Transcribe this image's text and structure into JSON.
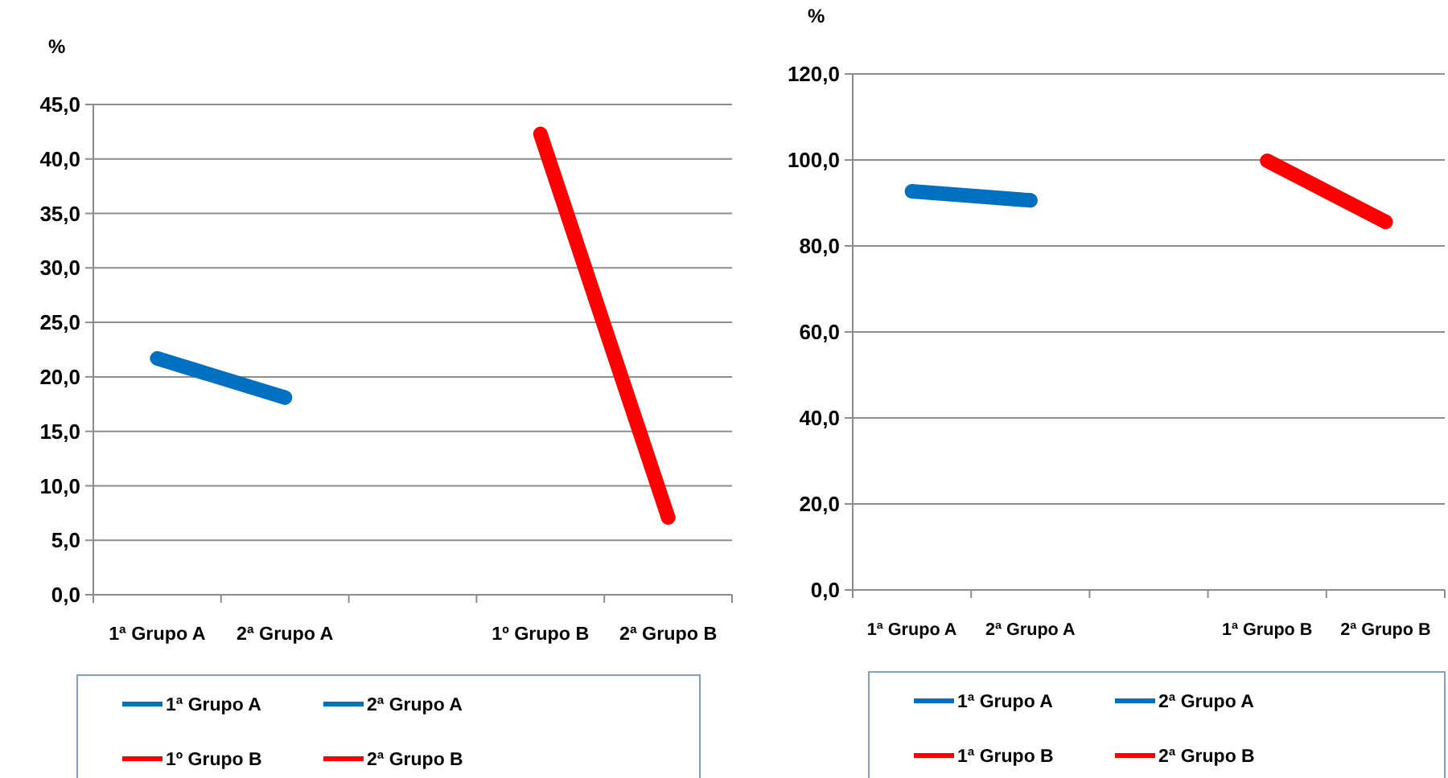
{
  "chart_data": [
    {
      "type": "line",
      "ylabel": "%",
      "categories": [
        "1ª Grupo A",
        "2ª Grupo A",
        null,
        "1º Grupo B",
        "2ª Grupo B"
      ],
      "ylim": [
        0,
        45
      ],
      "yticks": [
        {
          "value": 0,
          "label": "0,0"
        },
        {
          "value": 5,
          "label": "5,0"
        },
        {
          "value": 10,
          "label": "10,0"
        },
        {
          "value": 15,
          "label": "15,0"
        },
        {
          "value": 20,
          "label": "20,0"
        },
        {
          "value": 25,
          "label": "25,0"
        },
        {
          "value": 30,
          "label": "30,0"
        },
        {
          "value": 35,
          "label": "35,0"
        },
        {
          "value": 40,
          "label": "40,0"
        },
        {
          "value": 45,
          "label": "45,0"
        }
      ],
      "grid": "y",
      "legend": "bottom",
      "marker": "none",
      "line_style": "solid",
      "series": [
        {
          "name": "1ª Grupo A",
          "color": "#0070c0",
          "values": [
            21.7,
            18.1,
            null,
            null,
            null
          ]
        },
        {
          "name": "2ª Grupo A",
          "color": "#0070c0",
          "marker": "circle",
          "values": [
            null,
            18.1,
            null,
            null,
            null
          ]
        },
        {
          "name": "1º Grupo B",
          "color": "#ff0000",
          "values": [
            null,
            null,
            null,
            42.3,
            7.1
          ]
        },
        {
          "name": "2ª Grupo B",
          "color": "#ff0000",
          "marker": "circle",
          "values": [
            null,
            null,
            null,
            null,
            7.1
          ]
        }
      ]
    },
    {
      "type": "line",
      "ylabel": "%",
      "categories": [
        "1ª Grupo A",
        "2ª Grupo A",
        null,
        "1ª Grupo B",
        "2ª Grupo B"
      ],
      "ylim": [
        0,
        120
      ],
      "yticks": [
        {
          "value": 0,
          "label": "0,0"
        },
        {
          "value": 20,
          "label": "20,0"
        },
        {
          "value": 40,
          "label": "40,0"
        },
        {
          "value": 60,
          "label": "60,0"
        },
        {
          "value": 80,
          "label": "80,0"
        },
        {
          "value": 100,
          "label": "100,0"
        },
        {
          "value": 120,
          "label": "120,0"
        }
      ],
      "grid": "y",
      "legend": "bottom",
      "marker": "none",
      "line_style": "solid",
      "series": [
        {
          "name": "1ª Grupo A",
          "color": "#0070c0",
          "values": [
            92.7,
            90.6,
            null,
            null,
            null
          ]
        },
        {
          "name": "2ª Grupo A",
          "color": "#0070c0",
          "marker": "circle",
          "values": [
            null,
            90.6,
            null,
            null,
            null
          ]
        },
        {
          "name": "1ª Grupo B",
          "color": "#ff0000",
          "values": [
            null,
            null,
            null,
            99.8,
            85.6
          ]
        },
        {
          "name": "2ª Grupo B",
          "color": "#ff0000",
          "marker": "circle",
          "values": [
            null,
            null,
            null,
            null,
            85.6
          ]
        }
      ]
    }
  ]
}
